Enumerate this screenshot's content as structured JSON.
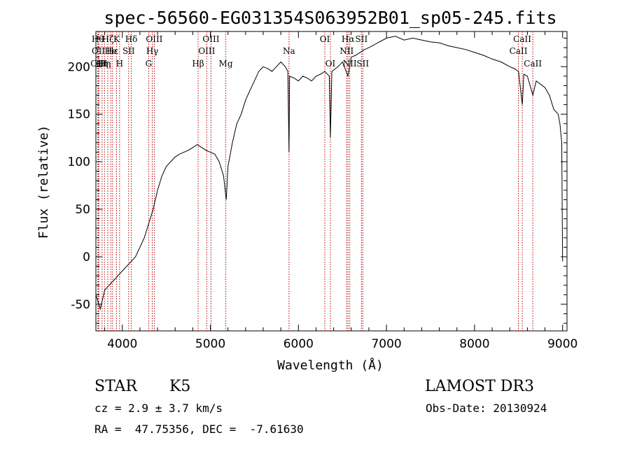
{
  "chart_data": {
    "type": "line",
    "title": "spec-56560-EG031354S063952B01_sp05-245.fits",
    "xlabel": "Wavelength (Å)",
    "ylabel": "Flux (relative)",
    "xlim": [
      3700,
      9050
    ],
    "ylim": [
      -78,
      237
    ],
    "xticks": [
      4000,
      5000,
      6000,
      7000,
      8000,
      9000
    ],
    "yticks": [
      -50,
      0,
      50,
      100,
      150,
      200
    ],
    "grid": false,
    "series": [
      {
        "x": [
          3700,
          3750,
          3800,
          3850,
          3900,
          3950,
          4000,
          4050,
          4100,
          4150,
          4200,
          4250,
          4300,
          4350,
          4400,
          4450,
          4500,
          4550,
          4600,
          4650,
          4700,
          4750,
          4800,
          4850,
          4900,
          4950,
          5000,
          5050,
          5100,
          5150,
          5180,
          5200,
          5250,
          5300,
          5350,
          5400,
          5450,
          5500,
          5550,
          5600,
          5650,
          5700,
          5750,
          5800,
          5850,
          5880,
          5893,
          5900,
          5950,
          6000,
          6050,
          6100,
          6150,
          6200,
          6250,
          6300,
          6350,
          6363,
          6380,
          6450,
          6500,
          6563,
          6600,
          6650,
          6700,
          6750,
          6800,
          6900,
          7000,
          7100,
          7200,
          7300,
          7400,
          7500,
          7600,
          7700,
          7800,
          7900,
          8000,
          8100,
          8200,
          8300,
          8400,
          8450,
          8500,
          8542,
          8560,
          8600,
          8662,
          8700,
          8800,
          8850,
          8900,
          8950,
          8970,
          8990,
          9000
        ],
        "y": [
          -40,
          -55,
          -35,
          -30,
          -25,
          -20,
          -15,
          -10,
          -5,
          0,
          10,
          20,
          35,
          50,
          70,
          85,
          95,
          100,
          105,
          108,
          110,
          112,
          115,
          118,
          115,
          112,
          110,
          108,
          100,
          85,
          60,
          95,
          120,
          140,
          150,
          165,
          175,
          185,
          195,
          200,
          198,
          195,
          200,
          205,
          200,
          195,
          110,
          190,
          188,
          185,
          190,
          188,
          185,
          190,
          192,
          195,
          190,
          125,
          195,
          200,
          205,
          190,
          210,
          212,
          215,
          218,
          220,
          225,
          230,
          232,
          228,
          230,
          228,
          226,
          225,
          222,
          220,
          218,
          215,
          212,
          208,
          205,
          200,
          198,
          195,
          160,
          192,
          190,
          170,
          185,
          178,
          170,
          155,
          150,
          140,
          120,
          -5
        ]
      }
    ],
    "lines": [
      {
        "x": 3722,
        "label": "Hθ",
        "row": 0
      },
      {
        "x": 3729,
        "label": "OII",
        "row": 1
      },
      {
        "x": 3734,
        "label": "OIII",
        "row": 2
      },
      {
        "x": 3770,
        "label": "Hη",
        "row": 2
      },
      {
        "x": 3798,
        "label": "Hη",
        "row": 2
      },
      {
        "x": 3835,
        "label": "Hζ",
        "row": 0
      },
      {
        "x": 3869,
        "label": "He",
        "row": 1
      },
      {
        "x": 3889,
        "label": "Hε",
        "row": 1
      },
      {
        "x": 3934,
        "label": "K",
        "row": 0
      },
      {
        "x": 3969,
        "label": "H",
        "row": 2
      },
      {
        "x": 4072,
        "label": "SII",
        "row": 1
      },
      {
        "x": 4102,
        "label": "Hδ",
        "row": 0
      },
      {
        "x": 4300,
        "label": "G",
        "row": 2
      },
      {
        "x": 4340,
        "label": "Hγ",
        "row": 1
      },
      {
        "x": 4363,
        "label": "OIII",
        "row": 0
      },
      {
        "x": 4861,
        "label": "Hβ",
        "row": 2
      },
      {
        "x": 4959,
        "label": "OIII",
        "row": 1
      },
      {
        "x": 5007,
        "label": "OIII",
        "row": 0
      },
      {
        "x": 5175,
        "label": "Mg",
        "row": 2
      },
      {
        "x": 5893,
        "label": "Na",
        "row": 1
      },
      {
        "x": 6300,
        "label": "OI",
        "row": 0
      },
      {
        "x": 6363,
        "label": "OI",
        "row": 2
      },
      {
        "x": 6548,
        "label": "NII",
        "row": 1
      },
      {
        "x": 6563,
        "label": "Hα",
        "row": 0
      },
      {
        "x": 6583,
        "label": "NII",
        "row": 2
      },
      {
        "x": 6716,
        "label": "SII",
        "row": 0
      },
      {
        "x": 6731,
        "label": "SII",
        "row": 2
      },
      {
        "x": 8498,
        "label": "CaII",
        "row": 1
      },
      {
        "x": 8542,
        "label": "CaII",
        "row": 0
      },
      {
        "x": 8662,
        "label": "CaII",
        "row": 2
      }
    ]
  },
  "info": {
    "class": "STAR",
    "subclass": "K5",
    "survey": "LAMOST DR3",
    "cz": "cz = 2.9 ± 3.7 km/s",
    "obs_date": "Obs-Date: 20130924",
    "coords": "RA =  47.75356, DEC =  -7.61630"
  }
}
